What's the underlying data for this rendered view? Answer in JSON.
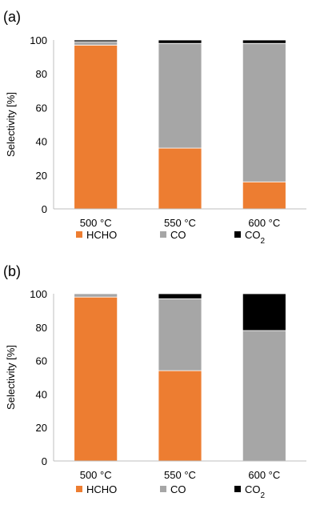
{
  "chart_data": [
    {
      "panel_label": "(a)",
      "type": "bar",
      "stacked": true,
      "categories": [
        "500 °C",
        "550 °C",
        "600 °C"
      ],
      "series": [
        {
          "name": "HCHO",
          "color": "#ED7D31",
          "values": [
            97,
            36,
            16
          ]
        },
        {
          "name": "CO",
          "color": "#A6A6A6",
          "values": [
            2,
            62,
            82
          ]
        },
        {
          "name": "CO2",
          "color": "#000000",
          "values": [
            1,
            2,
            2
          ]
        }
      ],
      "ylabel": "Selectivity [%]",
      "ylim": [
        0,
        100
      ],
      "yticks": [
        0,
        20,
        40,
        60,
        80,
        100
      ],
      "grid": false,
      "legend": "bottom"
    },
    {
      "panel_label": "(b)",
      "type": "bar",
      "stacked": true,
      "categories": [
        "500 °C",
        "550 °C",
        "600 °C"
      ],
      "series": [
        {
          "name": "HCHO",
          "color": "#ED7D31",
          "values": [
            98,
            54,
            0
          ]
        },
        {
          "name": "CO",
          "color": "#A6A6A6",
          "values": [
            2,
            43,
            78
          ]
        },
        {
          "name": "CO2",
          "color": "#000000",
          "values": [
            0,
            3,
            22
          ]
        }
      ],
      "ylabel": "Selectivity [%]",
      "ylim": [
        0,
        100
      ],
      "yticks": [
        0,
        20,
        40,
        60,
        80,
        100
      ],
      "grid": false,
      "legend": "bottom"
    }
  ]
}
